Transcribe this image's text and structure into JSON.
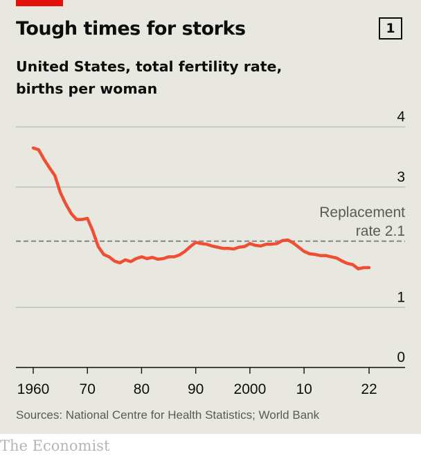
{
  "header": {
    "title": "Tough times for storks",
    "chart_number": "1",
    "subtitle_line1": "United States, total fertility rate,",
    "subtitle_line2": "births per woman"
  },
  "annotation": {
    "line1": "Replacement",
    "line2": "rate 2.1"
  },
  "footer": {
    "source": "Sources: National Centre for Health Statistics; World Bank",
    "brand": "The Economist"
  },
  "colors": {
    "background": "#e9e8e0",
    "series": "#f04e32",
    "accent": "#e3120b",
    "gridline": "#b7b7b7",
    "reference_line": "#8a8a8a"
  },
  "chart_data": {
    "type": "line",
    "title": "Tough times for storks",
    "subtitle": "United States, total fertility rate, births per woman",
    "xlabel": "",
    "ylabel": "",
    "xlim": [
      1960,
      2022
    ],
    "ylim": [
      0,
      4
    ],
    "x_ticks": [
      1960,
      1970,
      1980,
      1990,
      2000,
      2010,
      2022
    ],
    "x_tick_labels": [
      "1960",
      "70",
      "80",
      "90",
      "2000",
      "10",
      "22"
    ],
    "y_ticks": [
      0,
      1,
      3,
      4
    ],
    "y_tick_labels": [
      "0",
      "1",
      "3",
      "4"
    ],
    "grid": true,
    "reference_line": {
      "value": 2.1,
      "label": "Replacement rate 2.1",
      "style": "dashed"
    },
    "series": [
      {
        "x": [
          1960,
          1961,
          1962,
          1963,
          1964,
          1965,
          1966,
          1967,
          1968,
          1969,
          1970,
          1971,
          1972,
          1973,
          1974,
          1975,
          1976,
          1977,
          1978,
          1979,
          1980,
          1981,
          1982,
          1983,
          1984,
          1985,
          1986,
          1987,
          1988,
          1989,
          1990,
          1991,
          1992,
          1993,
          1994,
          1995,
          1996,
          1997,
          1998,
          1999,
          2000,
          2001,
          2002,
          2003,
          2004,
          2005,
          2006,
          2007,
          2008,
          2009,
          2010,
          2011,
          2012,
          2013,
          2014,
          2015,
          2016,
          2017,
          2018,
          2019,
          2020,
          2021,
          2022
        ],
        "values": [
          3.65,
          3.62,
          3.46,
          3.32,
          3.19,
          2.91,
          2.72,
          2.56,
          2.46,
          2.46,
          2.48,
          2.27,
          2.01,
          1.88,
          1.84,
          1.77,
          1.74,
          1.79,
          1.76,
          1.81,
          1.84,
          1.81,
          1.83,
          1.8,
          1.81,
          1.84,
          1.84,
          1.87,
          1.93,
          2.01,
          2.08,
          2.06,
          2.05,
          2.02,
          2.0,
          1.98,
          1.98,
          1.97,
          2.0,
          2.01,
          2.06,
          2.03,
          2.02,
          2.05,
          2.05,
          2.06,
          2.11,
          2.12,
          2.07,
          2.0,
          1.93,
          1.89,
          1.88,
          1.86,
          1.86,
          1.84,
          1.82,
          1.77,
          1.73,
          1.71,
          1.64,
          1.66,
          1.66
        ]
      }
    ]
  }
}
